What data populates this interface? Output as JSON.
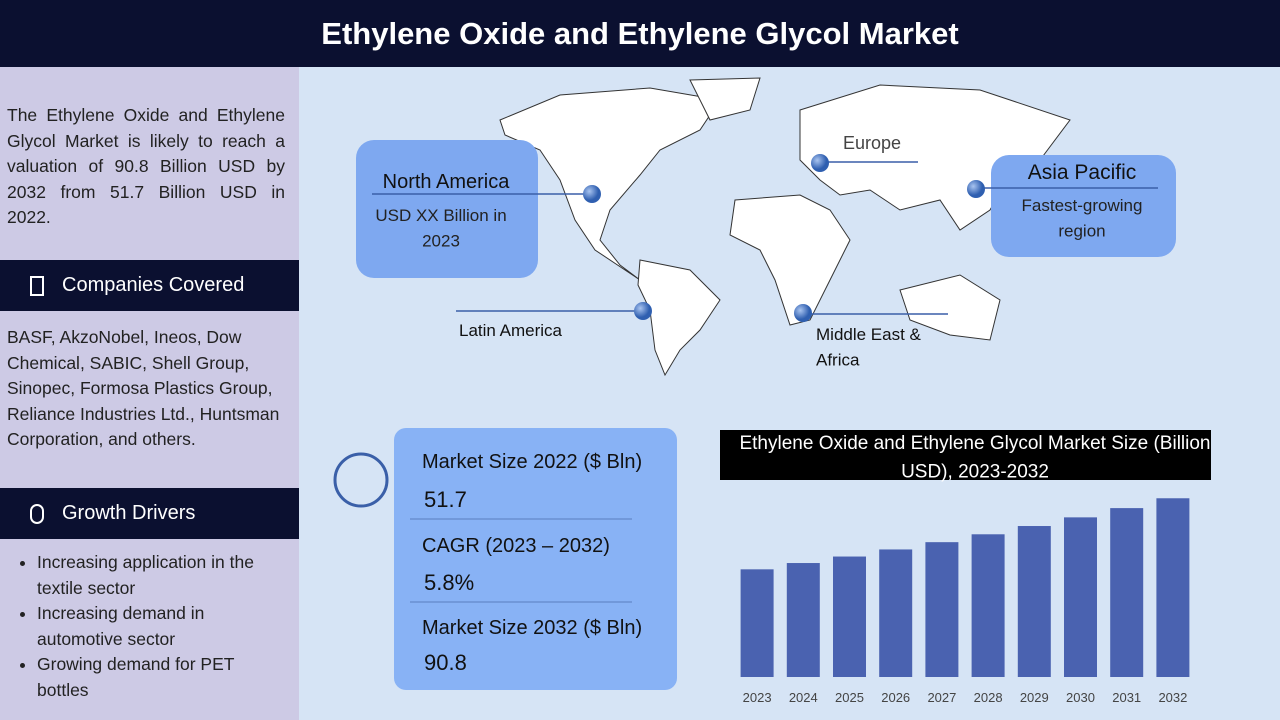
{
  "title": "Ethylene Oxide and Ethylene Glycol Market",
  "summary": "The Ethylene Oxide and Ethylene Glycol Market is likely to reach a valuation of 90.8 Billion USD by 2032 from 51.7 Billion USD in 2022.",
  "companies": {
    "heading": "Companies Covered",
    "text": "BASF, AkzoNobel, Ineos, Dow Chemical, SABIC, Shell Group, Sinopec, Formosa Plastics Group, Reliance Industries Ltd., Huntsman Corporation, and others."
  },
  "drivers": {
    "heading": "Growth Drivers",
    "items": [
      "Increasing application in the textile sector",
      "Increasing demand in automotive sector",
      "Growing demand for PET bottles"
    ]
  },
  "map": {
    "regions": [
      {
        "name": "North America",
        "detail": "USD XX Billion in 2023"
      },
      {
        "name": "Europe"
      },
      {
        "name": "Asia Pacific",
        "detail": "Fastest-growing region"
      },
      {
        "name": "Latin America"
      },
      {
        "name": "Middle East & Africa"
      }
    ]
  },
  "stats": [
    {
      "label": "Market Size 2022 ($ Bln)",
      "value": "51.7"
    },
    {
      "label": "CAGR (2023 – 2032)",
      "value": "5.8%"
    },
    {
      "label": "Market Size 2032 ($ Bln)",
      "value": "90.8"
    }
  ],
  "chart_data": {
    "type": "bar",
    "title": "Ethylene Oxide and Ethylene Glycol Market Size (Billion USD), 2023-2032",
    "categories": [
      "2023",
      "2024",
      "2025",
      "2026",
      "2027",
      "2028",
      "2029",
      "2030",
      "2031",
      "2032"
    ],
    "values": [
      54.7,
      57.9,
      61.2,
      64.8,
      68.5,
      72.5,
      76.7,
      81.1,
      85.8,
      90.8
    ],
    "color": "#4a62b0",
    "ylim": [
      0,
      95
    ]
  }
}
